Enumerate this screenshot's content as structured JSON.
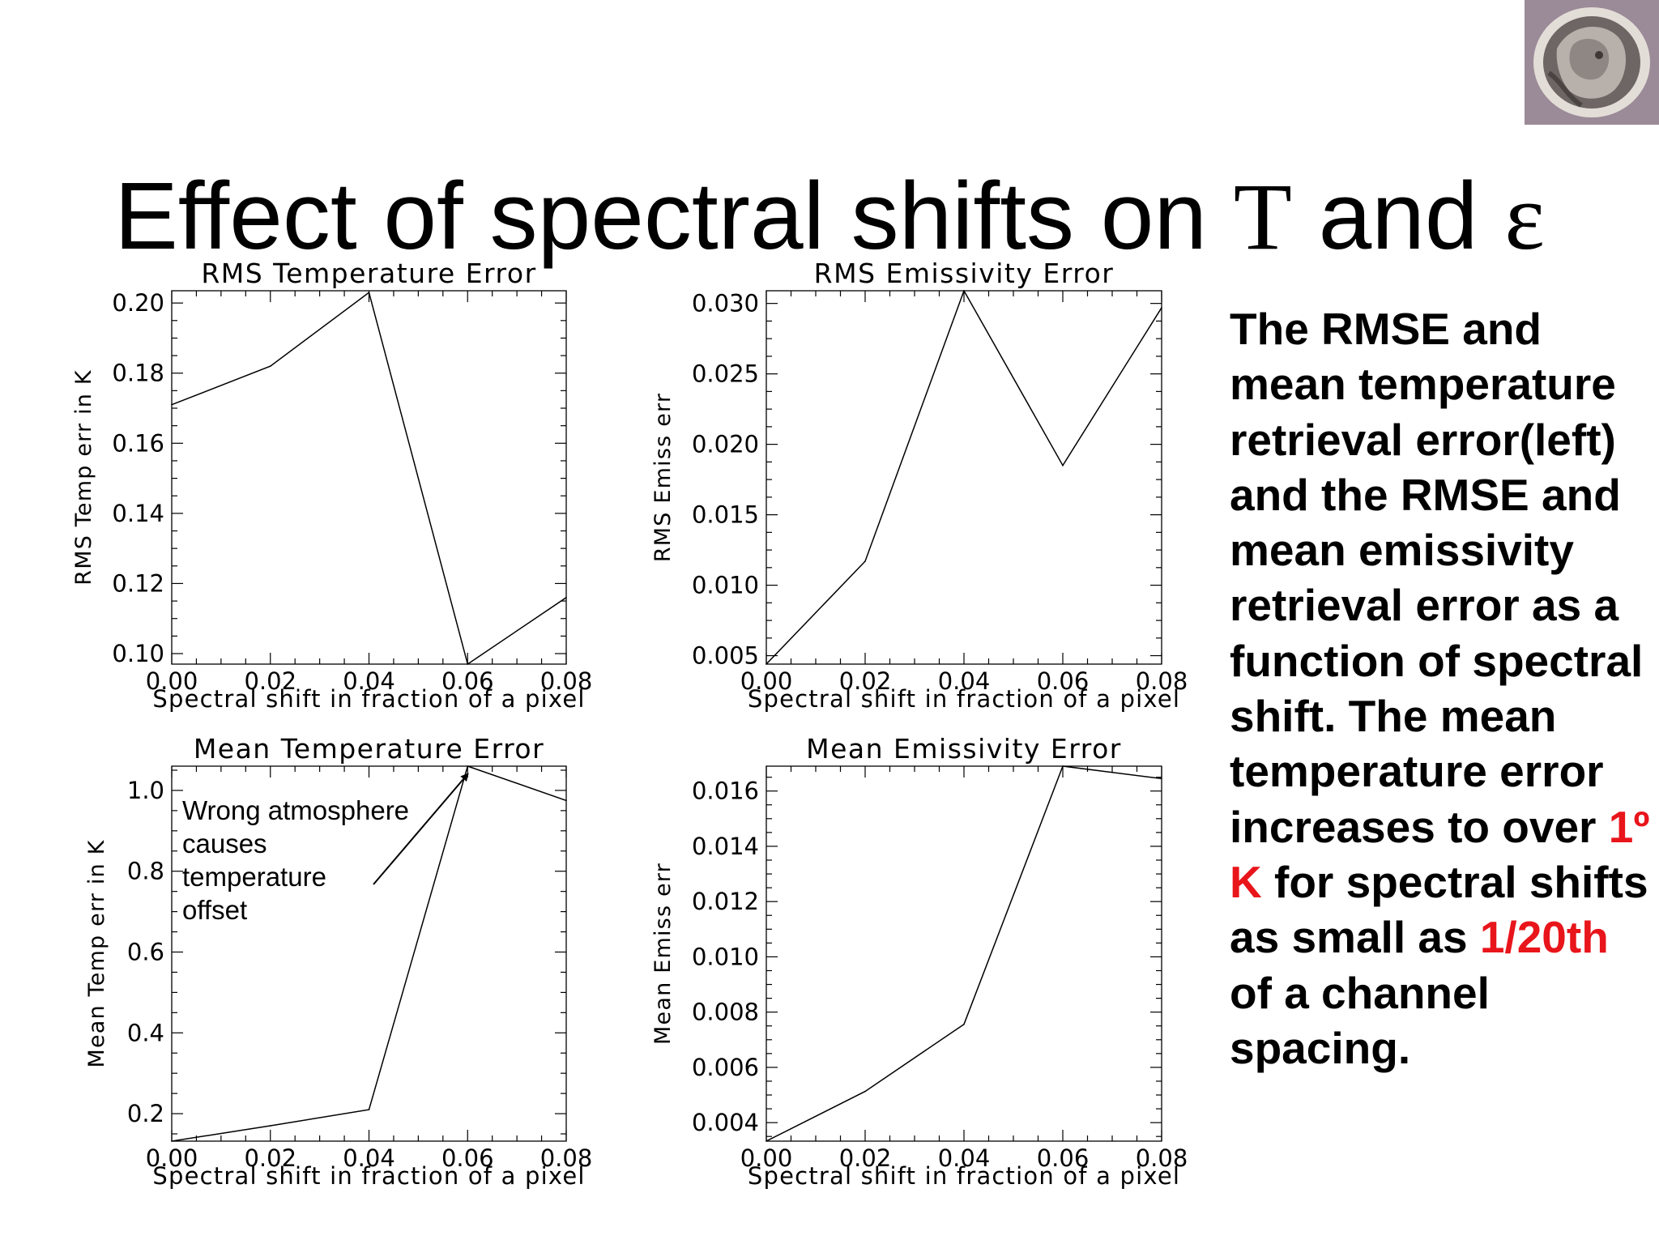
{
  "slide": {
    "title_prefix": "Effect of spectral shifts on ",
    "title_symbol_T": "T",
    "title_and": " and ",
    "title_symbol_epsilon": "ε"
  },
  "caption": {
    "part1": "The RMSE and mean temperature retrieval error(left) and the RMSE and mean emissivity retrieval error as a function of spectral shift. The mean temperature error increases to over ",
    "highlight1": "1º K",
    "part2": " for spectral shifts as small as ",
    "highlight2": "1/20th",
    "part3": " of a channel spacing.",
    "highlight_color": "#e8151b"
  },
  "annotation": {
    "lines": [
      "Wrong atmosphere",
      "causes",
      "temperature",
      "offset"
    ]
  },
  "chart_data": [
    {
      "type": "line",
      "title": "RMS Temperature Error",
      "xlabel": "Spectral shift in fraction of a pixel",
      "ylabel": "RMS Temp err in K",
      "x": [
        0.0,
        0.02,
        0.04,
        0.06,
        0.08
      ],
      "values": [
        0.171,
        0.182,
        0.203,
        0.097,
        0.116
      ],
      "xlim": [
        0.0,
        0.08
      ],
      "ylim": [
        0.097,
        0.2035
      ],
      "xticks": [
        "0.00",
        "0.02",
        "0.04",
        "0.06",
        "0.08"
      ],
      "yticks": [
        0.1,
        0.12,
        0.14,
        0.16,
        0.18,
        0.2
      ],
      "yticklabels": [
        "0.10",
        "0.12",
        "0.14",
        "0.16",
        "0.18",
        "0.20"
      ],
      "grid": false
    },
    {
      "type": "line",
      "title": "RMS Emissivity Error",
      "xlabel": "Spectral shift in fraction of a pixel",
      "ylabel": "RMS Emiss err",
      "x": [
        0.0,
        0.02,
        0.04,
        0.06,
        0.08
      ],
      "values": [
        0.0044,
        0.0117,
        0.0309,
        0.0185,
        0.0297
      ],
      "xlim": [
        0.0,
        0.08
      ],
      "ylim": [
        0.0044,
        0.0309
      ],
      "xticks": [
        "0.00",
        "0.02",
        "0.04",
        "0.06",
        "0.08"
      ],
      "yticks": [
        0.005,
        0.01,
        0.015,
        0.02,
        0.025,
        0.03
      ],
      "yticklabels": [
        "0.005",
        "0.010",
        "0.015",
        "0.020",
        "0.025",
        "0.030"
      ],
      "grid": false
    },
    {
      "type": "line",
      "title": "Mean Temperature Error",
      "xlabel": "Spectral shift in fraction of a pixel",
      "ylabel": "Mean Temp err in K",
      "x": [
        0.0,
        0.02,
        0.04,
        0.06,
        0.08
      ],
      "values": [
        0.132,
        0.17,
        0.21,
        1.06,
        0.975
      ],
      "xlim": [
        0.0,
        0.08
      ],
      "ylim": [
        0.132,
        1.06
      ],
      "xticks": [
        "0.00",
        "0.02",
        "0.04",
        "0.06",
        "0.08"
      ],
      "yticks": [
        0.2,
        0.4,
        0.6,
        0.8,
        1.0
      ],
      "yticklabels": [
        "0.2",
        "0.4",
        "0.6",
        "0.8",
        "1.0"
      ],
      "grid": false
    },
    {
      "type": "line",
      "title": "Mean Emissivity Error",
      "xlabel": "Spectral shift in fraction of a pixel",
      "ylabel": "Mean Emiss err",
      "x": [
        0.0,
        0.02,
        0.04,
        0.06,
        0.08
      ],
      "values": [
        0.00333,
        0.00513,
        0.00756,
        0.0169,
        0.01645
      ],
      "xlim": [
        0.0,
        0.08
      ],
      "ylim": [
        0.00333,
        0.0169
      ],
      "xticks": [
        "0.00",
        "0.02",
        "0.04",
        "0.06",
        "0.08"
      ],
      "yticks": [
        0.004,
        0.006,
        0.008,
        0.01,
        0.012,
        0.014,
        0.016
      ],
      "yticklabels": [
        "0.004",
        "0.006",
        "0.008",
        "0.010",
        "0.012",
        "0.014",
        "0.016"
      ],
      "grid": false
    }
  ]
}
